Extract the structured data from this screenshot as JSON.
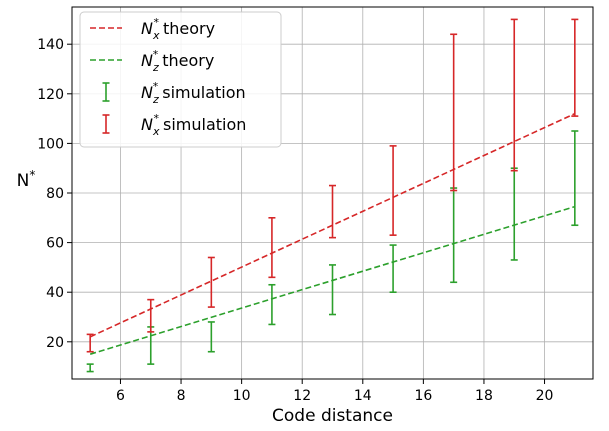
{
  "chart_data": {
    "type": "line",
    "xlabel": "Code distance",
    "ylabel": "N*",
    "xlim": [
      4.4,
      21.6
    ],
    "ylim": [
      5,
      155
    ],
    "x_ticks": [
      6,
      8,
      10,
      12,
      14,
      16,
      18,
      20
    ],
    "y_ticks": [
      20,
      40,
      60,
      80,
      100,
      120,
      140
    ],
    "grid": true,
    "legend_position": "upper-left",
    "series": [
      {
        "name": "N_x* theory",
        "kind": "dashed-line",
        "color": "#d62728",
        "x": [
          5,
          21
        ],
        "y": [
          22,
          112
        ]
      },
      {
        "name": "N_z* theory",
        "kind": "dashed-line",
        "color": "#2ca02c",
        "x": [
          5,
          21
        ],
        "y": [
          15,
          74.5
        ]
      },
      {
        "name": "N_z* simulation",
        "kind": "errorbar",
        "color": "#2ca02c",
        "x": [
          5,
          7,
          9,
          11,
          13,
          15,
          17,
          19,
          21
        ],
        "low": [
          8,
          11,
          16,
          27,
          31,
          40,
          44,
          53,
          67
        ],
        "high": [
          11,
          26,
          28,
          43,
          51,
          59,
          82,
          90,
          105
        ]
      },
      {
        "name": "N_x* simulation",
        "kind": "errorbar",
        "color": "#d62728",
        "x": [
          5,
          7,
          9,
          11,
          13,
          15,
          17,
          19,
          21
        ],
        "low": [
          16,
          24,
          34,
          46,
          62,
          63,
          81,
          89,
          111
        ],
        "high": [
          23,
          37,
          54,
          70,
          83,
          99,
          144,
          150,
          150
        ]
      }
    ]
  }
}
